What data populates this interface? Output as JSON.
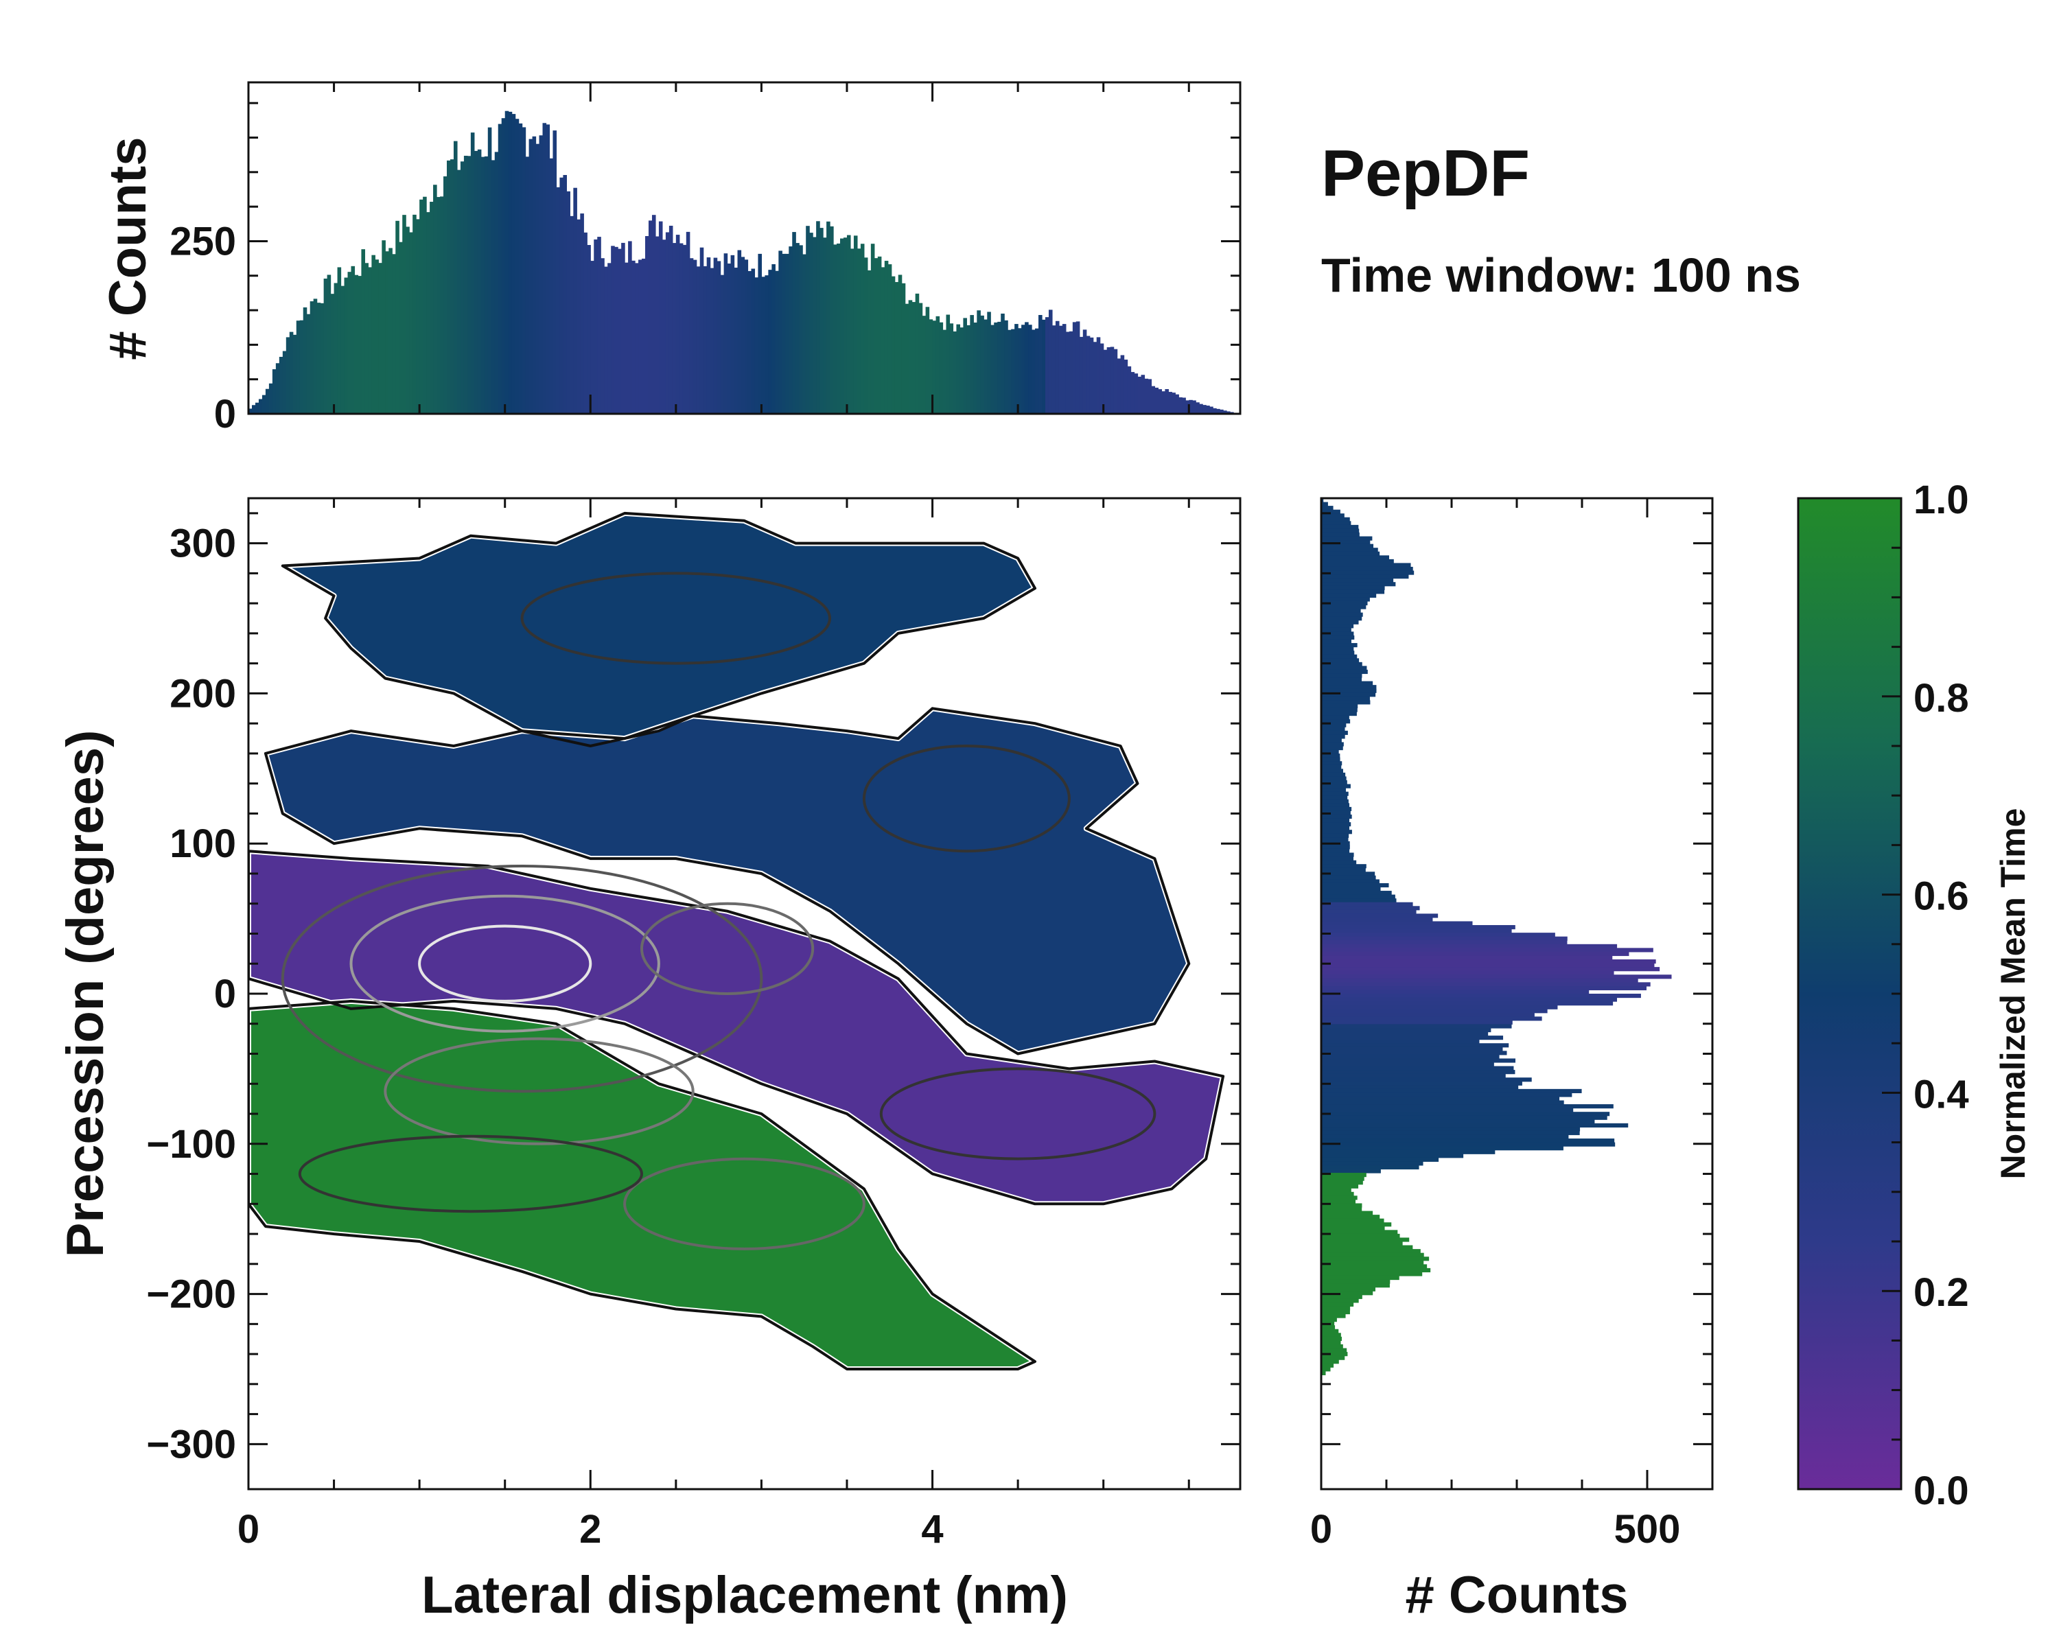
{
  "title": "PepDF",
  "subtitle": "Time window: 100 ns",
  "colors": {
    "low": "#6a2c9a",
    "mid_low": "#2e3a8a",
    "mid": "#0f3d6e",
    "mid_high": "#176b52",
    "high": "#228b2a"
  },
  "chart_data": [
    {
      "id": "top-marginal",
      "type": "bar",
      "title": "",
      "xlabel": "",
      "ylabel": "# Counts",
      "xlim": [
        0,
        5.8
      ],
      "ylim": [
        0,
        480
      ],
      "y_ticks": [
        0,
        250
      ],
      "y_tick_labels": [
        "0",
        "250"
      ],
      "x_points": [
        0.0,
        0.1,
        0.2,
        0.3,
        0.4,
        0.5,
        0.6,
        0.8,
        1.0,
        1.1,
        1.2,
        1.3,
        1.4,
        1.5,
        1.6,
        1.7,
        1.75,
        1.85,
        1.95,
        2.0,
        2.2,
        2.3,
        2.4,
        2.5,
        2.6,
        2.8,
        3.0,
        3.2,
        3.35,
        3.5,
        3.7,
        3.9,
        4.1,
        4.3,
        4.5,
        4.7,
        4.9,
        5.1,
        5.3,
        5.5,
        5.7,
        5.8
      ],
      "y_points": [
        5,
        30,
        90,
        140,
        170,
        190,
        205,
        240,
        290,
        340,
        360,
        380,
        395,
        400,
        410,
        415,
        400,
        340,
        270,
        240,
        230,
        245,
        280,
        270,
        240,
        220,
        215,
        245,
        260,
        240,
        220,
        160,
        130,
        140,
        130,
        140,
        120,
        80,
        40,
        20,
        5,
        0
      ]
    },
    {
      "id": "right-marginal",
      "type": "bar",
      "orientation": "horizontal",
      "xlabel": "# Counts",
      "ylabel": "",
      "xlim": [
        0,
        600
      ],
      "ylim": [
        -330,
        330
      ],
      "x_ticks": [
        0,
        500
      ],
      "x_tick_labels": [
        "0",
        "500"
      ],
      "y_points": [
        -330,
        -255,
        -240,
        -220,
        -200,
        -185,
        -170,
        -160,
        -150,
        -140,
        -130,
        -120,
        -110,
        -100,
        -90,
        -80,
        -70,
        -60,
        -50,
        -40,
        -30,
        -20,
        -10,
        0,
        10,
        20,
        30,
        40,
        50,
        60,
        70,
        80,
        90,
        100,
        120,
        140,
        160,
        180,
        200,
        220,
        240,
        260,
        280,
        300,
        320,
        330
      ],
      "x_points": [
        0,
        0,
        40,
        20,
        70,
        150,
        160,
        110,
        90,
        60,
        50,
        80,
        200,
        420,
        440,
        420,
        390,
        330,
        300,
        280,
        260,
        270,
        380,
        450,
        500,
        520,
        480,
        360,
        180,
        130,
        100,
        80,
        50,
        40,
        50,
        40,
        30,
        40,
        80,
        60,
        50,
        70,
        140,
        80,
        30,
        0
      ]
    },
    {
      "id": "main-heatmap",
      "type": "heatmap",
      "xlabel": "Lateral displacement (nm)",
      "ylabel": "Precession (degrees)",
      "xlim": [
        0,
        5.8
      ],
      "ylim": [
        -330,
        330
      ],
      "x_ticks": [
        0,
        2,
        4
      ],
      "x_tick_labels": [
        "0",
        "2",
        "4"
      ],
      "y_ticks": [
        300,
        200,
        100,
        0,
        -100,
        -200,
        -300
      ],
      "y_tick_labels": [
        "300",
        "200",
        "100",
        "0",
        "−100",
        "−200",
        "−300"
      ],
      "regions": [
        {
          "name": "upper-blue-region",
          "value": 0.5,
          "polygon": [
            [
              0.2,
              285
            ],
            [
              1.0,
              290
            ],
            [
              1.3,
              305
            ],
            [
              1.8,
              300
            ],
            [
              2.2,
              320
            ],
            [
              2.9,
              315
            ],
            [
              3.2,
              300
            ],
            [
              4.3,
              300
            ],
            [
              4.5,
              290
            ],
            [
              4.6,
              270
            ],
            [
              4.3,
              250
            ],
            [
              3.8,
              240
            ],
            [
              3.6,
              220
            ],
            [
              3.0,
              200
            ],
            [
              2.6,
              185
            ],
            [
              2.4,
              175
            ],
            [
              2.0,
              165
            ],
            [
              1.6,
              175
            ],
            [
              1.2,
              200
            ],
            [
              0.8,
              210
            ],
            [
              0.6,
              230
            ],
            [
              0.45,
              250
            ],
            [
              0.5,
              265
            ],
            [
              0.2,
              285
            ]
          ]
        },
        {
          "name": "middle-blue-region",
          "value": 0.45,
          "polygon": [
            [
              0.1,
              160
            ],
            [
              0.6,
              175
            ],
            [
              1.2,
              165
            ],
            [
              1.6,
              175
            ],
            [
              2.2,
              170
            ],
            [
              2.6,
              185
            ],
            [
              3.1,
              180
            ],
            [
              3.5,
              175
            ],
            [
              3.8,
              170
            ],
            [
              4.0,
              190
            ],
            [
              4.6,
              180
            ],
            [
              5.1,
              165
            ],
            [
              5.2,
              140
            ],
            [
              4.9,
              110
            ],
            [
              5.3,
              90
            ],
            [
              5.4,
              55
            ],
            [
              5.5,
              20
            ],
            [
              5.3,
              -20
            ],
            [
              4.5,
              -40
            ],
            [
              4.2,
              -20
            ],
            [
              3.8,
              20
            ],
            [
              3.4,
              55
            ],
            [
              3.0,
              80
            ],
            [
              2.5,
              90
            ],
            [
              2.0,
              90
            ],
            [
              1.6,
              105
            ],
            [
              1.0,
              110
            ],
            [
              0.5,
              100
            ],
            [
              0.2,
              120
            ],
            [
              0.1,
              160
            ]
          ]
        },
        {
          "name": "purple-region",
          "value": 0.1,
          "polygon": [
            [
              0.0,
              95
            ],
            [
              0.6,
              90
            ],
            [
              1.4,
              85
            ],
            [
              2.0,
              70
            ],
            [
              2.8,
              55
            ],
            [
              3.4,
              35
            ],
            [
              3.8,
              10
            ],
            [
              4.2,
              -40
            ],
            [
              4.8,
              -50
            ],
            [
              5.3,
              -45
            ],
            [
              5.7,
              -55
            ],
            [
              5.6,
              -110
            ],
            [
              5.4,
              -130
            ],
            [
              5.0,
              -140
            ],
            [
              4.6,
              -140
            ],
            [
              4.0,
              -120
            ],
            [
              3.5,
              -80
            ],
            [
              3.0,
              -60
            ],
            [
              2.6,
              -40
            ],
            [
              2.2,
              -20
            ],
            [
              1.8,
              -10
            ],
            [
              1.2,
              -5
            ],
            [
              0.6,
              -10
            ],
            [
              0.0,
              10
            ],
            [
              0.0,
              95
            ]
          ]
        },
        {
          "name": "green-lower-region",
          "value": 0.95,
          "polygon": [
            [
              0.0,
              -10
            ],
            [
              0.6,
              -5
            ],
            [
              1.2,
              -10
            ],
            [
              1.8,
              -20
            ],
            [
              2.4,
              -60
            ],
            [
              3.0,
              -80
            ],
            [
              3.6,
              -130
            ],
            [
              3.8,
              -170
            ],
            [
              4.0,
              -200
            ],
            [
              4.4,
              -230
            ],
            [
              4.6,
              -245
            ],
            [
              4.5,
              -250
            ],
            [
              3.5,
              -250
            ],
            [
              3.3,
              -235
            ],
            [
              3.0,
              -215
            ],
            [
              2.5,
              -210
            ],
            [
              2.0,
              -200
            ],
            [
              1.6,
              -185
            ],
            [
              1.0,
              -165
            ],
            [
              0.5,
              -160
            ],
            [
              0.1,
              -155
            ],
            [
              0.0,
              -140
            ],
            [
              0.0,
              -10
            ]
          ]
        }
      ],
      "colorbar": {
        "label": "Normalized Mean Time",
        "min": 0.0,
        "max": 1.0,
        "ticks": [
          0.0,
          0.2,
          0.4,
          0.6,
          0.8,
          1.0
        ],
        "tick_labels": [
          "0.0",
          "0.2",
          "0.4",
          "0.6",
          "0.8",
          "1.0"
        ]
      }
    }
  ]
}
